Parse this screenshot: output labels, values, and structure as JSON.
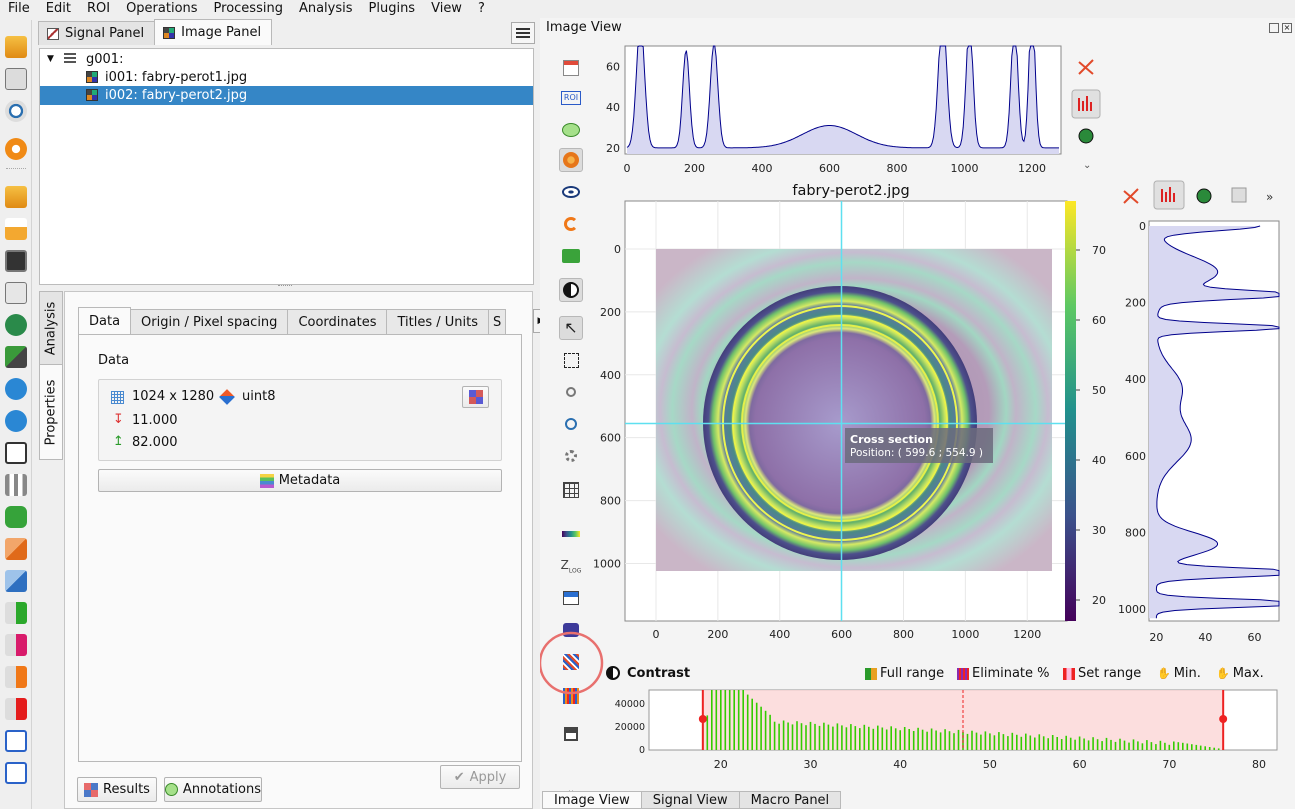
{
  "menubar": {
    "items": [
      "File",
      "Edit",
      "ROI",
      "Operations",
      "Processing",
      "Analysis",
      "Plugins",
      "View",
      "?"
    ]
  },
  "left_toolbar": {
    "icons": [
      "open-folder-icon",
      "open-h5-icon",
      "save-h5-icon",
      "browse-icon",
      "settings-icon",
      "open-file-icon",
      "upload-icon",
      "save-icon",
      "duplicate-stack-icon",
      "dataset-icon",
      "import-icon",
      "move-up-icon",
      "move-down-icon",
      "copy-icon",
      "delete-icon",
      "truck-icon",
      "group-copy-icon",
      "group-paste-icon",
      "add-metadata-icon",
      "import-metadata-icon",
      "export-metadata-icon",
      "delete-metadata-icon",
      "roi-copy-icon",
      "roi-paste-icon"
    ]
  },
  "panel_tabs": [
    {
      "label": "Signal Panel"
    },
    {
      "label": "Image Panel"
    }
  ],
  "tree": {
    "group": "g001:",
    "items": [
      {
        "label": "i001: fabry-perot1.jpg"
      },
      {
        "label": "i002: fabry-perot2.jpg"
      }
    ]
  },
  "side_tabs": [
    {
      "label": "Analysis"
    },
    {
      "label": "Properties"
    }
  ],
  "prop_tabs": [
    {
      "label": "Data"
    },
    {
      "label": "Origin / Pixel spacing"
    },
    {
      "label": "Coordinates"
    },
    {
      "label": "Titles / Units"
    },
    {
      "label": "S"
    }
  ],
  "data": {
    "heading": "Data",
    "shape": "1024 x 1280",
    "dtype": "uint8",
    "min": "11.000",
    "max": "82.000",
    "metadata_button": "Metadata",
    "apply_button": "Apply"
  },
  "bottom_buttons": {
    "results": "Results",
    "annotations": "Annotations"
  },
  "image_view": {
    "window_title": "Image View",
    "plot_title": "fabry-perot2.jpg",
    "tooltip_title": "Cross section",
    "tooltip_position": "Position: ( 599.6 ; 554.9 )",
    "x_ticks": [
      "0",
      "200",
      "400",
      "600",
      "800",
      "1000",
      "1200"
    ],
    "y_ticks": [
      "0",
      "200",
      "400",
      "600",
      "800",
      "1000"
    ],
    "colorbar_ticks": [
      "70",
      "60",
      "50",
      "40",
      "30",
      "20"
    ],
    "top_profile_xticks": [
      "0",
      "200",
      "400",
      "600",
      "800",
      "1000",
      "1200"
    ],
    "top_profile_yticks": [
      "60",
      "40",
      "20"
    ],
    "right_profile_xticks": [
      "20",
      "40",
      "60"
    ],
    "right_profile_yticks": [
      "0",
      "200",
      "400",
      "600",
      "800",
      "1000"
    ],
    "cross_x": 599.6,
    "cross_y": 554.9
  },
  "contrast": {
    "title": "Contrast",
    "buttons": [
      {
        "label": "Full range"
      },
      {
        "label": "Eliminate %"
      },
      {
        "label": "Set range"
      },
      {
        "label": "Min."
      },
      {
        "label": "Max."
      }
    ],
    "hist_yticks": [
      "40000",
      "20000",
      "0"
    ],
    "hist_xticks": [
      "20",
      "30",
      "40",
      "50",
      "60",
      "70",
      "80"
    ],
    "range_min": 18,
    "range_max": 76
  },
  "bottom_tabs": [
    {
      "label": "Image View"
    },
    {
      "label": "Signal View"
    },
    {
      "label": "Macro Panel"
    }
  ],
  "colors": {
    "accent": "#3586c6",
    "annotation": "#e8706e",
    "histogram": "#33cc00",
    "profile": "#00008b"
  }
}
